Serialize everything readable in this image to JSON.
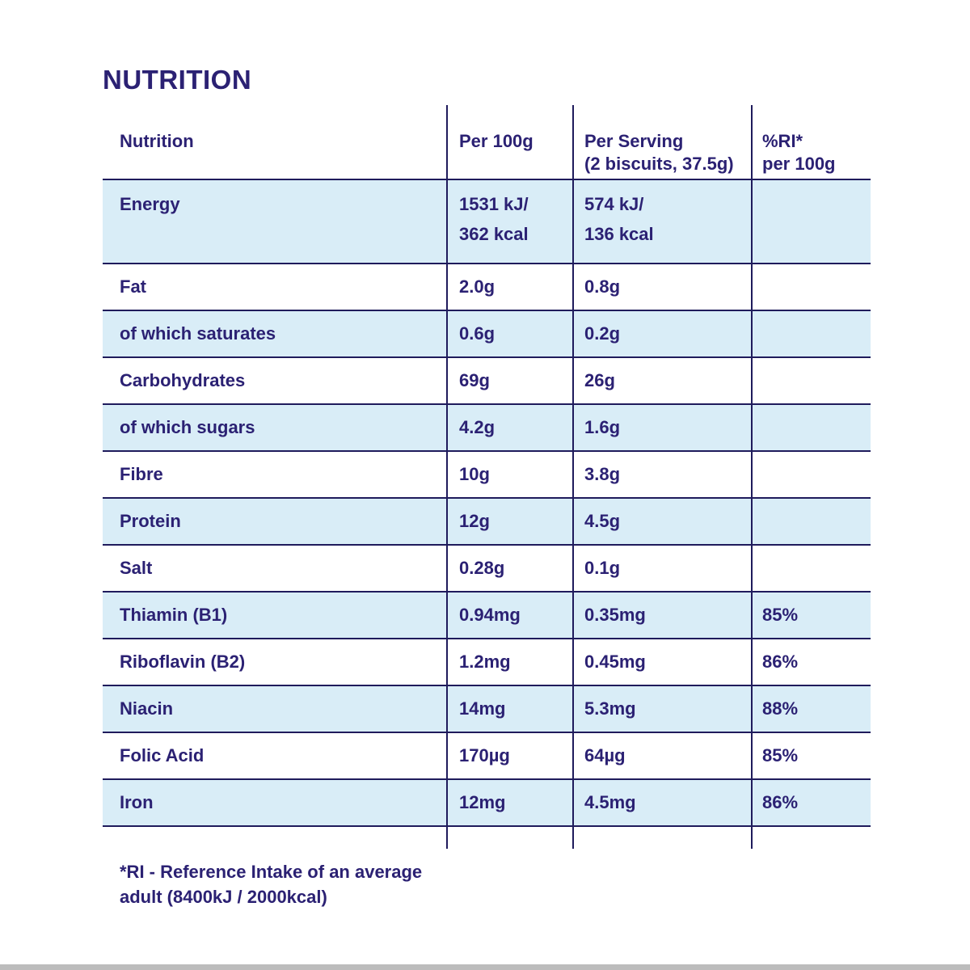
{
  "title": "NUTRITION",
  "colors": {
    "text_navy": "#2b2173",
    "line_navy": "#1f1b5c",
    "row_blue": "#d9edf7",
    "bottom_strip_gray": "#bcbcbc"
  },
  "table": {
    "headers": {
      "col0": "Nutrition",
      "col1": "Per 100g",
      "col2_line1": "Per Serving",
      "col2_line2": "(2 biscuits, 37.5g)",
      "col3_line1": "%RI*",
      "col3_line2": "per 100g"
    },
    "energy_row": {
      "name": "Energy",
      "per_100g_l1": "1531 kJ/",
      "per_100g_l2": "362 kcal",
      "per_serving_l1": "574 kJ/",
      "per_serving_l2": "136 kcal",
      "ri": ""
    },
    "rows": [
      {
        "name": "Fat",
        "per_100g": "2.0g",
        "per_serving": "0.8g",
        "ri": ""
      },
      {
        "name": "of which saturates",
        "per_100g": "0.6g",
        "per_serving": "0.2g",
        "ri": ""
      },
      {
        "name": "Carbohydrates",
        "per_100g": "69g",
        "per_serving": "26g",
        "ri": ""
      },
      {
        "name": "of which sugars",
        "per_100g": "4.2g",
        "per_serving": "1.6g",
        "ri": ""
      },
      {
        "name": "Fibre",
        "per_100g": "10g",
        "per_serving": "3.8g",
        "ri": ""
      },
      {
        "name": "Protein",
        "per_100g": "12g",
        "per_serving": "4.5g",
        "ri": ""
      },
      {
        "name": "Salt",
        "per_100g": "0.28g",
        "per_serving": "0.1g",
        "ri": ""
      },
      {
        "name": "Thiamin (B1)",
        "per_100g": "0.94mg",
        "per_serving": "0.35mg",
        "ri": "85%"
      },
      {
        "name": "Riboflavin (B2)",
        "per_100g": "1.2mg",
        "per_serving": "0.45mg",
        "ri": "86%"
      },
      {
        "name": "Niacin",
        "per_100g": "14mg",
        "per_serving": "5.3mg",
        "ri": "88%"
      },
      {
        "name": "Folic Acid",
        "per_100g": "170µg",
        "per_serving": "64µg",
        "ri": "85%"
      },
      {
        "name": "Iron",
        "per_100g": "12mg",
        "per_serving": "4.5mg",
        "ri": "86%"
      }
    ]
  },
  "footnote": {
    "line1": "*RI - Reference Intake of an average",
    "line2": "adult (8400kJ / 2000kcal)"
  }
}
